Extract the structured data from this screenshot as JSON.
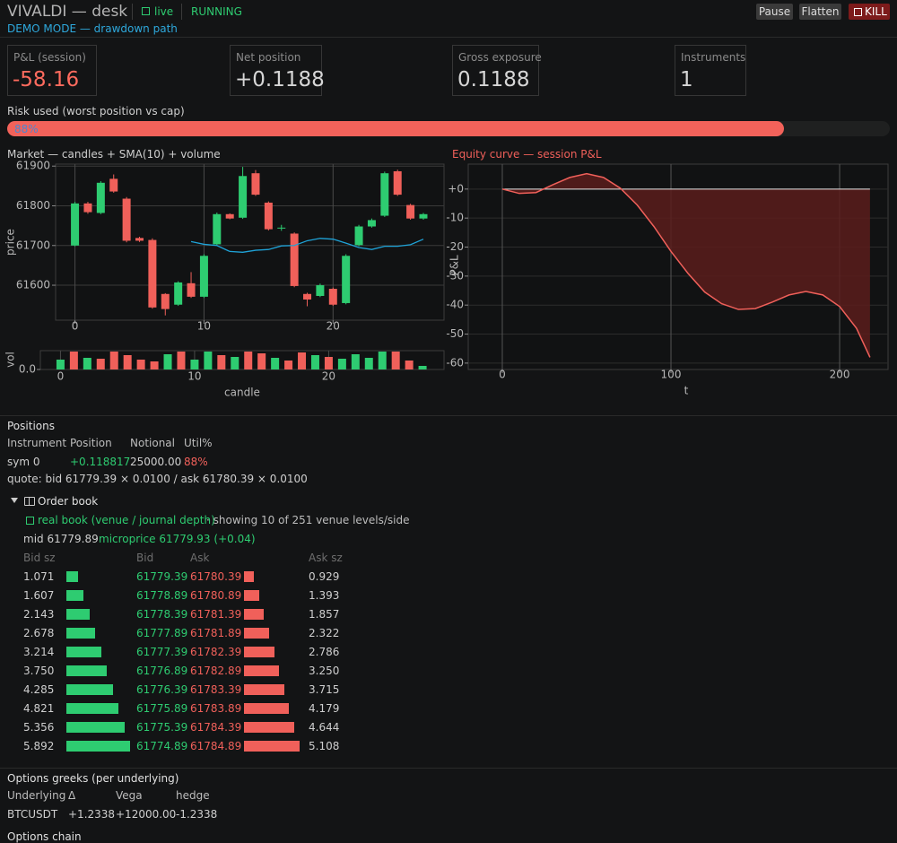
{
  "header": {
    "title": "VIVALDI — desk",
    "live": "live",
    "status": "RUNNING",
    "buttons": [
      "Pause",
      "Flatten",
      "KILL"
    ],
    "mode": "DEMO MODE — drawdown path"
  },
  "metrics": [
    {
      "label": "P&L (session)",
      "value": "-58.16"
    },
    {
      "label": "Net position",
      "value": "+0.1188"
    },
    {
      "label": "Gross exposure",
      "value": "0.1188"
    },
    {
      "label": "Instruments",
      "value": "1"
    }
  ],
  "risk": {
    "label": "Risk used (worst position vs cap)",
    "value": 88,
    "value_label": "88%",
    "color": "#f2625a"
  },
  "chart_data": [
    {
      "type": "candlestick",
      "title": "Market — candles + SMA(10) + volume",
      "ylabel": "price",
      "x": [
        0,
        1,
        2,
        3,
        4,
        5,
        6,
        7,
        8,
        9,
        10,
        11,
        12,
        13,
        14,
        15,
        16,
        17,
        18,
        19,
        20,
        21,
        22,
        23,
        24,
        25,
        26,
        27
      ],
      "open": [
        61700,
        61806,
        61782,
        61868,
        61818,
        61719,
        61714,
        61578,
        61551,
        61605,
        61571,
        61703,
        61779,
        61770,
        61882,
        61808,
        61743,
        61730,
        61578,
        61573,
        61591,
        61555,
        61701,
        61748,
        61775,
        61887,
        61802,
        61768
      ],
      "high": [
        61810,
        61810,
        61862,
        61879,
        61822,
        61722,
        61718,
        61580,
        61610,
        61633,
        61678,
        61783,
        61781,
        61898,
        61890,
        61811,
        61752,
        61733,
        61581,
        61604,
        61594,
        61678,
        61752,
        61768,
        61886,
        61891,
        61805,
        61782
      ],
      "low": [
        61698,
        61780,
        61779,
        61833,
        61708,
        61709,
        61541,
        61524,
        61548,
        61568,
        61568,
        61700,
        61766,
        61767,
        61825,
        61738,
        61737,
        61595,
        61547,
        61570,
        61548,
        61552,
        61698,
        61745,
        61772,
        61825,
        61765,
        61765
      ],
      "close": [
        61806,
        61784,
        61858,
        61836,
        61712,
        61712,
        61544,
        61540,
        61607,
        61571,
        61674,
        61779,
        61768,
        61875,
        61828,
        61741,
        61745,
        61598,
        61564,
        61600,
        61551,
        61674,
        61748,
        61764,
        61882,
        61828,
        61768,
        61779
      ],
      "sma": [
        null,
        null,
        null,
        null,
        null,
        null,
        null,
        null,
        null,
        61710,
        61703,
        61700,
        61685,
        61683,
        61688,
        61690,
        61699,
        61700,
        61712,
        61718,
        61716,
        61706,
        61695,
        61690,
        61698,
        61698,
        61702,
        61716
      ],
      "xlim": [
        -1.5,
        28.6
      ],
      "ylim": [
        61512,
        61905
      ],
      "xticks": [
        0,
        10,
        20
      ],
      "yticks": [
        61600,
        61700,
        61800,
        61900
      ],
      "up_color": "#2ecc71",
      "down_color": "#f0605a",
      "sma_color": "#1fa3d8",
      "grid": true
    },
    {
      "type": "bar",
      "ylabel": "vol",
      "xlabel": "candle",
      "values": [
        0.55,
        1.0,
        0.65,
        0.6,
        1.0,
        0.8,
        0.55,
        0.45,
        0.85,
        1.0,
        0.55,
        1.0,
        0.8,
        0.7,
        1.0,
        0.9,
        0.65,
        0.5,
        0.95,
        0.8,
        0.7,
        0.6,
        0.85,
        0.65,
        1.0,
        1.0,
        0.5,
        0.2
      ],
      "xlim": [
        -1.5,
        28.6
      ],
      "ylim": [
        0,
        1.05
      ],
      "xticks": [
        0,
        10,
        20
      ],
      "yticks": [
        {
          "value": 0,
          "label": "0.0"
        }
      ],
      "grid": true
    },
    {
      "type": "line",
      "title": "Equity curve — session P&L",
      "xlabel": "t",
      "ylabel": "P&L",
      "x": [
        0,
        10,
        20,
        30,
        40,
        50,
        60,
        70,
        80,
        90,
        100,
        110,
        120,
        130,
        140,
        150,
        160,
        170,
        180,
        190,
        200,
        210,
        218
      ],
      "values": [
        0,
        -1.5,
        -1.2,
        1.5,
        4,
        5.3,
        4,
        0.3,
        -5.5,
        -13,
        -21.5,
        -29,
        -35.5,
        -39.5,
        -41.5,
        -41.2,
        -39,
        -36.5,
        -35.3,
        -36.5,
        -40.5,
        -48,
        -58
      ],
      "xlim": [
        -20.2,
        228.7
      ],
      "ylim": [
        -62.2,
        8.6
      ],
      "xticks": [
        0,
        100,
        200
      ],
      "yticks": [
        {
          "value": 0,
          "label": "+0"
        },
        -10,
        -20,
        -30,
        -40,
        -50,
        -60
      ],
      "color": "#f0605a",
      "fill_color": "#5a1d1c",
      "grid": true
    }
  ],
  "positions": {
    "title": "Positions",
    "headers": [
      "Instrument",
      "Position",
      "Notional",
      "Util%"
    ],
    "rows": [
      [
        "sym 0",
        "+0.118817",
        "25000.00",
        "88%"
      ]
    ],
    "quote": "quote:  bid 61779.39 × 0.0100  /  ask 61780.39 × 0.0100"
  },
  "order_book": {
    "title": "Order book",
    "source": "real book (venue / journal depth)",
    "showing": "· showing 10 of 251 venue levels/side",
    "mid": "mid 61779.89",
    "microprice": "microprice 61779.93 (+0.04)",
    "headers": [
      "Bid sz",
      "Bid",
      "Ask",
      "Ask sz"
    ],
    "rows": [
      [
        "1.071",
        "61779.39",
        "61780.39",
        "0.929"
      ],
      [
        "1.607",
        "61778.89",
        "61780.89",
        "1.393"
      ],
      [
        "2.143",
        "61778.39",
        "61781.39",
        "1.857"
      ],
      [
        "2.678",
        "61777.89",
        "61781.89",
        "2.322"
      ],
      [
        "3.214",
        "61777.39",
        "61782.39",
        "2.786"
      ],
      [
        "3.750",
        "61776.89",
        "61782.89",
        "3.250"
      ],
      [
        "4.285",
        "61776.39",
        "61783.39",
        "3.715"
      ],
      [
        "4.821",
        "61775.89",
        "61783.89",
        "4.179"
      ],
      [
        "5.356",
        "61775.39",
        "61784.39",
        "4.644"
      ],
      [
        "5.892",
        "61774.89",
        "61784.89",
        "5.108"
      ]
    ]
  },
  "greeks": {
    "title": "Options greeks (per underlying)",
    "headers": [
      "Underlying",
      "Δ",
      "Vega",
      "hedge"
    ],
    "rows": [
      [
        "BTCUSDT",
        "+1.2338",
        "+12000.00",
        "-1.2338"
      ]
    ]
  },
  "options_chain": {
    "title": "Options chain"
  }
}
